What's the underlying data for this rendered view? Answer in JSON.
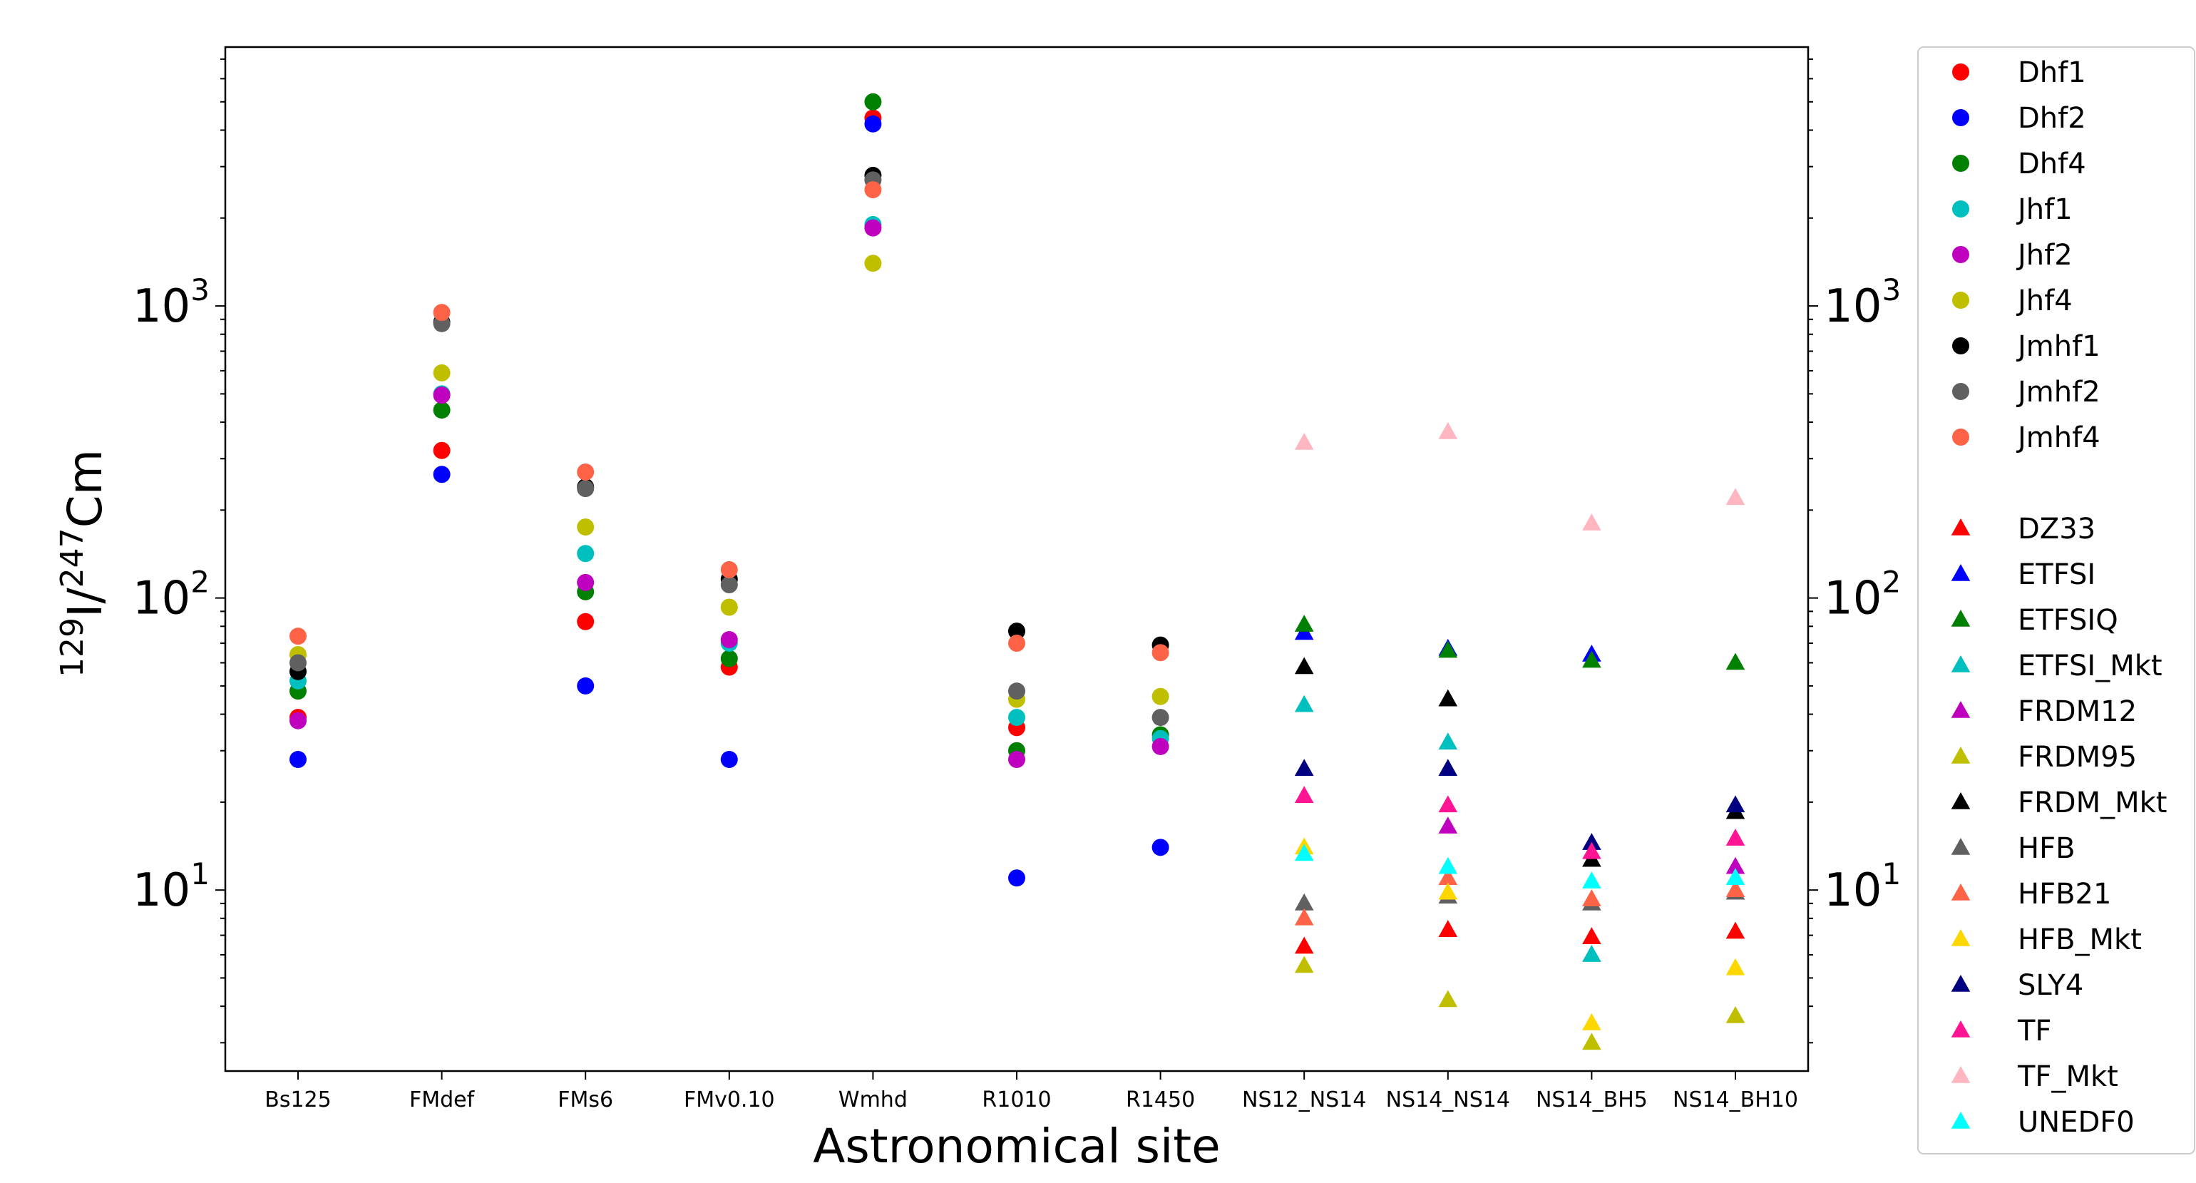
{
  "chart_data": {
    "type": "scatter",
    "xlabel": "Astronomical site",
    "ylabel": "¹²⁹I/²⁴⁷Cm",
    "ylabel_parts": {
      "sup1": "129",
      "base1": "I/",
      "sup2": "247",
      "base2": "Cm"
    },
    "yscale": "log",
    "ylim": [
      2.4,
      7700
    ],
    "yticks": [
      {
        "value": 10,
        "base": "10",
        "exp": "1"
      },
      {
        "value": 100,
        "base": "10",
        "exp": "2"
      },
      {
        "value": 1000,
        "base": "10",
        "exp": "3"
      }
    ],
    "categories": [
      "Bs125",
      "FMdef",
      "FMs6",
      "FMv0.10",
      "Wmhd",
      "R1010",
      "R1450",
      "NS12_NS14",
      "NS14_NS14",
      "NS14_BH5",
      "NS14_BH10"
    ],
    "legend_position": "outside-right",
    "grid": false,
    "circle_series": [
      {
        "name": "Dhf1",
        "color": "#ff0000",
        "values": [
          39,
          320,
          83,
          58,
          4400,
          36,
          null,
          null,
          null,
          null,
          null
        ]
      },
      {
        "name": "Dhf2",
        "color": "#0000ff",
        "values": [
          28,
          265,
          50,
          28,
          4200,
          11,
          14,
          null,
          null,
          null,
          null
        ]
      },
      {
        "name": "Dhf4",
        "color": "#008000",
        "values": [
          48,
          440,
          105,
          62,
          5000,
          30,
          34,
          null,
          null,
          null,
          null
        ]
      },
      {
        "name": "Jhf1",
        "color": "#00bfbf",
        "values": [
          52,
          500,
          142,
          70,
          1900,
          39,
          33,
          null,
          null,
          null,
          null
        ]
      },
      {
        "name": "Jhf2",
        "color": "#bf00bf",
        "values": [
          38,
          495,
          113,
          72,
          1850,
          28,
          31,
          null,
          null,
          null,
          null
        ]
      },
      {
        "name": "Jhf4",
        "color": "#bfbf00",
        "values": [
          64,
          590,
          175,
          93,
          1400,
          45,
          46,
          null,
          null,
          null,
          null
        ]
      },
      {
        "name": "Jmhf1",
        "color": "#000000",
        "values": [
          56,
          880,
          240,
          116,
          2800,
          77,
          69,
          null,
          null,
          null,
          null
        ]
      },
      {
        "name": "Jmhf2",
        "color": "#606060",
        "values": [
          60,
          870,
          237,
          111,
          2700,
          48,
          39,
          null,
          null,
          null,
          null
        ]
      },
      {
        "name": "Jmhf4",
        "color": "#ff6347",
        "values": [
          74,
          950,
          270,
          125,
          2500,
          70,
          65,
          null,
          null,
          null,
          null
        ]
      }
    ],
    "triangle_series": [
      {
        "name": "DZ33",
        "color": "#ff0000",
        "values": [
          null,
          null,
          null,
          null,
          null,
          null,
          null,
          6.4,
          7.3,
          6.9,
          7.2
        ]
      },
      {
        "name": "ETFSI",
        "color": "#0000ff",
        "values": [
          null,
          null,
          null,
          null,
          null,
          null,
          null,
          76,
          67,
          64,
          null
        ]
      },
      {
        "name": "ETFSIQ",
        "color": "#008000",
        "values": [
          null,
          null,
          null,
          null,
          null,
          null,
          null,
          81,
          66,
          61,
          60
        ]
      },
      {
        "name": "ETFSI_Mkt",
        "color": "#00bfbf",
        "values": [
          null,
          null,
          null,
          null,
          null,
          null,
          null,
          43,
          32,
          6,
          null
        ]
      },
      {
        "name": "FRDM12",
        "color": "#bf00bf",
        "values": [
          null,
          null,
          null,
          null,
          null,
          null,
          null,
          null,
          16.5,
          null,
          12
        ]
      },
      {
        "name": "FRDM95",
        "color": "#bfbf00",
        "values": [
          null,
          null,
          null,
          null,
          null,
          null,
          null,
          5.5,
          4.2,
          3,
          3.7
        ]
      },
      {
        "name": "FRDM_Mkt",
        "color": "#000000",
        "values": [
          null,
          null,
          null,
          null,
          null,
          null,
          null,
          58,
          45,
          12.7,
          18.5
        ]
      },
      {
        "name": "HFB",
        "color": "#606060",
        "values": [
          null,
          null,
          null,
          null,
          null,
          null,
          null,
          9,
          9.5,
          9,
          9.8
        ]
      },
      {
        "name": "HFB21",
        "color": "#ff6347",
        "values": [
          null,
          null,
          null,
          null,
          null,
          null,
          null,
          8,
          11,
          9.3,
          10
        ]
      },
      {
        "name": "HFB_Mkt",
        "color": "#ffd700",
        "values": [
          null,
          null,
          null,
          null,
          null,
          null,
          null,
          14,
          9.8,
          3.5,
          5.4
        ]
      },
      {
        "name": "SLY4",
        "color": "#000080",
        "values": [
          null,
          null,
          null,
          null,
          null,
          null,
          null,
          26,
          26,
          14.5,
          19.5
        ]
      },
      {
        "name": "TF",
        "color": "#ff1493",
        "values": [
          null,
          null,
          null,
          null,
          null,
          null,
          null,
          21,
          19.5,
          13.5,
          15
        ]
      },
      {
        "name": "TF_Mkt",
        "color": "#ffb6c1",
        "values": [
          null,
          null,
          null,
          null,
          null,
          null,
          null,
          340,
          370,
          180,
          220
        ]
      },
      {
        "name": "UNEDF0",
        "color": "#00ffff",
        "values": [
          null,
          null,
          null,
          null,
          null,
          null,
          null,
          13.3,
          12,
          10.7,
          11
        ]
      }
    ]
  }
}
